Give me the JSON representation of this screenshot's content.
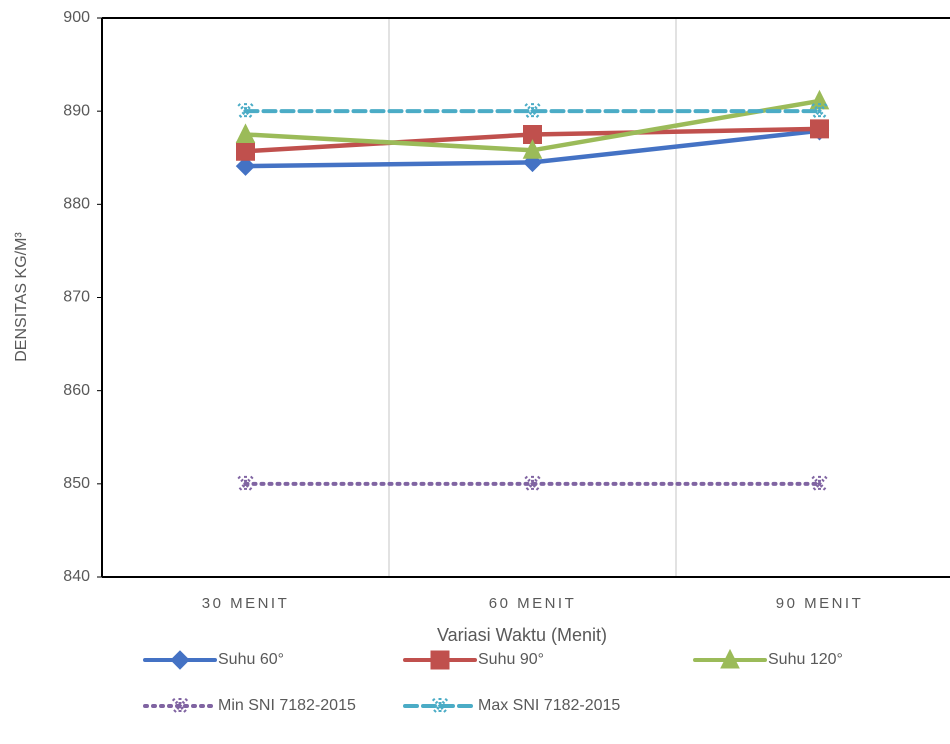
{
  "chart_data": {
    "type": "line",
    "y_label": "DENSITAS KG/M³",
    "x_label": "Variasi Waktu (Menit)",
    "categories": [
      "30 MENIT",
      "60 MENIT",
      "90 MENIT"
    ],
    "series": [
      {
        "name": "Suhu 60°",
        "color": "#4472c4",
        "marker": "diamond",
        "dash": "solid",
        "values": [
          884.1,
          884.5,
          887.9
        ]
      },
      {
        "name": "Suhu 90°",
        "color": "#c0504d",
        "marker": "square",
        "dash": "solid",
        "values": [
          885.7,
          887.5,
          888.1
        ]
      },
      {
        "name": "Suhu 120°",
        "color": "#9bbb59",
        "marker": "triangle",
        "dash": "solid",
        "values": [
          887.5,
          885.8,
          891.1
        ]
      },
      {
        "name": "Min SNI 7182-2015",
        "color": "#8064a2",
        "marker": "star",
        "dash": "dotted",
        "values": [
          850,
          850,
          850
        ]
      },
      {
        "name": "Max SNI 7182-2015",
        "color": "#4bacc6",
        "marker": "star",
        "dash": "dashed",
        "values": [
          890,
          890,
          890
        ]
      }
    ],
    "ylim": [
      840,
      900
    ],
    "yticks": [
      840,
      850,
      860,
      870,
      880,
      890,
      900
    ],
    "grid": false,
    "legend": "bottom"
  }
}
